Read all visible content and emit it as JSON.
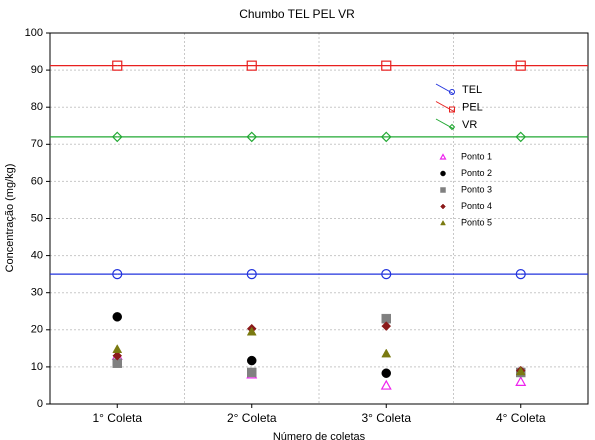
{
  "chart_data": {
    "type": "scatter",
    "title": "Chumbo TEL PEL VR",
    "x_label": "Número de coletas",
    "y_label": "Concentração (mg/kg)",
    "categories": [
      "1° Coleta",
      "2° Coleta",
      "3° Coleta",
      "4° Coleta"
    ],
    "ylim": [
      0,
      100
    ],
    "yticks": [
      0,
      10,
      20,
      30,
      40,
      50,
      60,
      70,
      80,
      90,
      100
    ],
    "grid": true,
    "series": [
      {
        "name": "TEL",
        "color": "#2233dd",
        "marker": "circle",
        "filled": false,
        "line": true,
        "values": [
          35,
          35,
          35,
          35
        ]
      },
      {
        "name": "PEL",
        "color": "#e8201f",
        "marker": "square",
        "filled": false,
        "line": true,
        "values": [
          91.2,
          91.2,
          91.2,
          91.2
        ]
      },
      {
        "name": "VR",
        "color": "#22a833",
        "marker": "diamond",
        "filled": false,
        "line": true,
        "values": [
          72,
          72,
          72,
          72
        ]
      },
      {
        "name": "Ponto 1",
        "color": "#ee22ee",
        "marker": "triangle",
        "filled": false,
        "line": false,
        "values": [
          13,
          8,
          5,
          6
        ]
      },
      {
        "name": "Ponto 2",
        "color": "#000000",
        "marker": "circle",
        "filled": true,
        "line": false,
        "values": [
          23.5,
          11.7,
          8.3,
          8.5
        ]
      },
      {
        "name": "Ponto 3",
        "color": "#808080",
        "marker": "square",
        "filled": true,
        "line": false,
        "values": [
          11,
          8.5,
          23,
          8.5
        ]
      },
      {
        "name": "Ponto 4",
        "color": "#8b1a1a",
        "marker": "diamond",
        "filled": true,
        "line": false,
        "values": [
          13,
          20.3,
          21,
          9
        ]
      },
      {
        "name": "Ponto 5",
        "color": "#7a7a10",
        "marker": "triangle",
        "filled": true,
        "line": false,
        "values": [
          14.8,
          19.5,
          13.6,
          8.8
        ]
      }
    ]
  }
}
